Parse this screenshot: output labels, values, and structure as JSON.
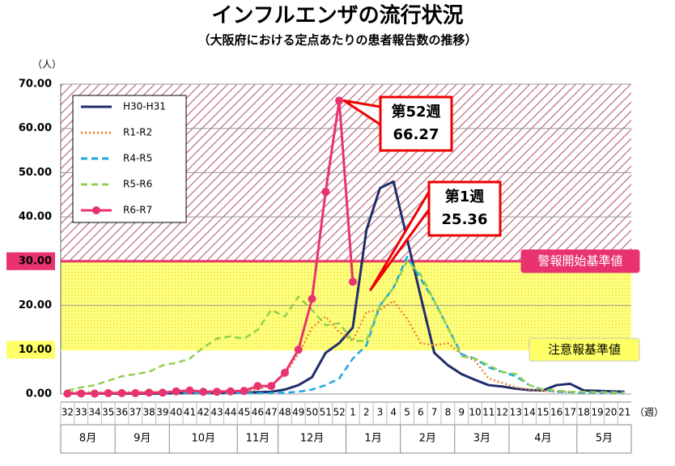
{
  "chart_data": {
    "type": "line",
    "title": "インフルエンザの流行状況",
    "subtitle": "（大阪府における定点あたりの患者報告数の推移）",
    "y_unit": "（人）",
    "x_unit": "（週）",
    "categories": [
      "32",
      "33",
      "34",
      "35",
      "36",
      "37",
      "38",
      "39",
      "40",
      "41",
      "42",
      "43",
      "44",
      "45",
      "46",
      "47",
      "48",
      "49",
      "50",
      "51",
      "52",
      "1",
      "2",
      "3",
      "4",
      "5",
      "6",
      "7",
      "8",
      "9",
      "10",
      "11",
      "12",
      "13",
      "14",
      "15",
      "16",
      "17",
      "18",
      "19",
      "20",
      "21"
    ],
    "months": [
      "8月",
      "9月",
      "10月",
      "11月",
      "12月",
      "1月",
      "2月",
      "3月",
      "4月",
      "5月"
    ],
    "month_spans": [
      4,
      4,
      5,
      3,
      5,
      4,
      4,
      4,
      5,
      4
    ],
    "ylim": [
      0,
      70
    ],
    "yticks": [
      {
        "value": 0,
        "label": "0.00"
      },
      {
        "value": 10,
        "label": "10.00"
      },
      {
        "value": 20,
        "label": "20.00"
      },
      {
        "value": 30,
        "label": "30.00"
      },
      {
        "value": 40,
        "label": "40.00"
      },
      {
        "value": 50,
        "label": "50.00"
      },
      {
        "value": 60,
        "label": "60.00"
      },
      {
        "value": 70,
        "label": "70.00"
      }
    ],
    "grid": true,
    "series": [
      {
        "name": "H30-H31",
        "color": "#1f2d6b",
        "dash": "solid",
        "marker": false,
        "values": [
          0.1,
          0.1,
          0.1,
          0.1,
          0.1,
          0.1,
          0.1,
          0.1,
          0.2,
          0.2,
          0.2,
          0.2,
          0.3,
          0.3,
          0.4,
          0.5,
          1,
          2,
          3.8,
          9.3,
          11.5,
          15,
          37,
          46.5,
          48,
          35,
          22,
          9.3,
          6.5,
          4.5,
          3.2,
          2,
          1.7,
          1.2,
          0.9,
          0.8,
          2,
          2.3,
          0.8,
          0.7,
          0.6,
          0.5
        ]
      },
      {
        "name": "R1-R2",
        "color": "#f08030",
        "dash": "dot",
        "marker": false,
        "values": [
          0.5,
          0.4,
          0.4,
          0.4,
          0.4,
          0.4,
          0.5,
          0.5,
          0.6,
          0.6,
          0.6,
          0.7,
          0.7,
          0.8,
          1,
          2,
          4.5,
          9,
          15,
          17.5,
          14,
          12,
          18.5,
          19,
          21,
          17,
          11.5,
          11,
          11.5,
          9,
          7.5,
          3.5,
          2.5,
          1.5,
          1,
          0.7,
          0.5,
          0.4,
          null,
          null,
          null,
          null
        ]
      },
      {
        "name": "R4-R5",
        "color": "#1ea8e0",
        "dash": "dash",
        "marker": false,
        "values": [
          0.2,
          0.2,
          0.2,
          0.2,
          0.2,
          0.2,
          0.2,
          0.2,
          0.2,
          0.2,
          0.2,
          0.2,
          0.2,
          0.2,
          0.2,
          0.2,
          0.3,
          0.5,
          1,
          2,
          3.5,
          8,
          11,
          20,
          24,
          31,
          26,
          21,
          15,
          9,
          8,
          6,
          5,
          4,
          2,
          1,
          0.5,
          0.4,
          0.3,
          0.3,
          0.3,
          0.3
        ]
      },
      {
        "name": "R5-R6",
        "color": "#92d050",
        "dash": "dash",
        "marker": false,
        "values": [
          0.8,
          1.5,
          2,
          3,
          4,
          4.5,
          5,
          6.5,
          7,
          8,
          10.5,
          12.5,
          13,
          12.5,
          14.5,
          19,
          17.5,
          22,
          19,
          15.5,
          16,
          12,
          12,
          20,
          24,
          30,
          27,
          21,
          15,
          8.5,
          8,
          6.5,
          5,
          4.5,
          2,
          1,
          0.8,
          0.5,
          0.5,
          0.4,
          0.4,
          0.3
        ]
      },
      {
        "name": "R6-R7",
        "color": "#e8336e",
        "dash": "solid",
        "marker": true,
        "values": [
          0.1,
          0.1,
          0.1,
          0.2,
          0.2,
          0.2,
          0.3,
          0.3,
          0.6,
          0.8,
          0.5,
          0.5,
          0.6,
          0.7,
          1.8,
          1.8,
          4.8,
          10,
          21.5,
          45.7,
          66.27,
          25.36,
          null,
          null,
          null,
          null,
          null,
          null,
          null,
          null,
          null,
          null,
          null,
          null,
          null,
          null,
          null,
          null,
          null,
          null,
          null,
          null
        ]
      }
    ],
    "reference_lines": [
      {
        "value": 30,
        "label": "警報開始基準値",
        "color": "#e8336e",
        "text_color": "#ffffff"
      },
      {
        "value": 10,
        "label": "注意報基準値",
        "color": "#ffff66",
        "text_color": "#000000"
      }
    ],
    "annotations": [
      {
        "week": "第52週",
        "value": "66.27"
      },
      {
        "week": "第1週",
        "value": "25.36"
      }
    ]
  }
}
